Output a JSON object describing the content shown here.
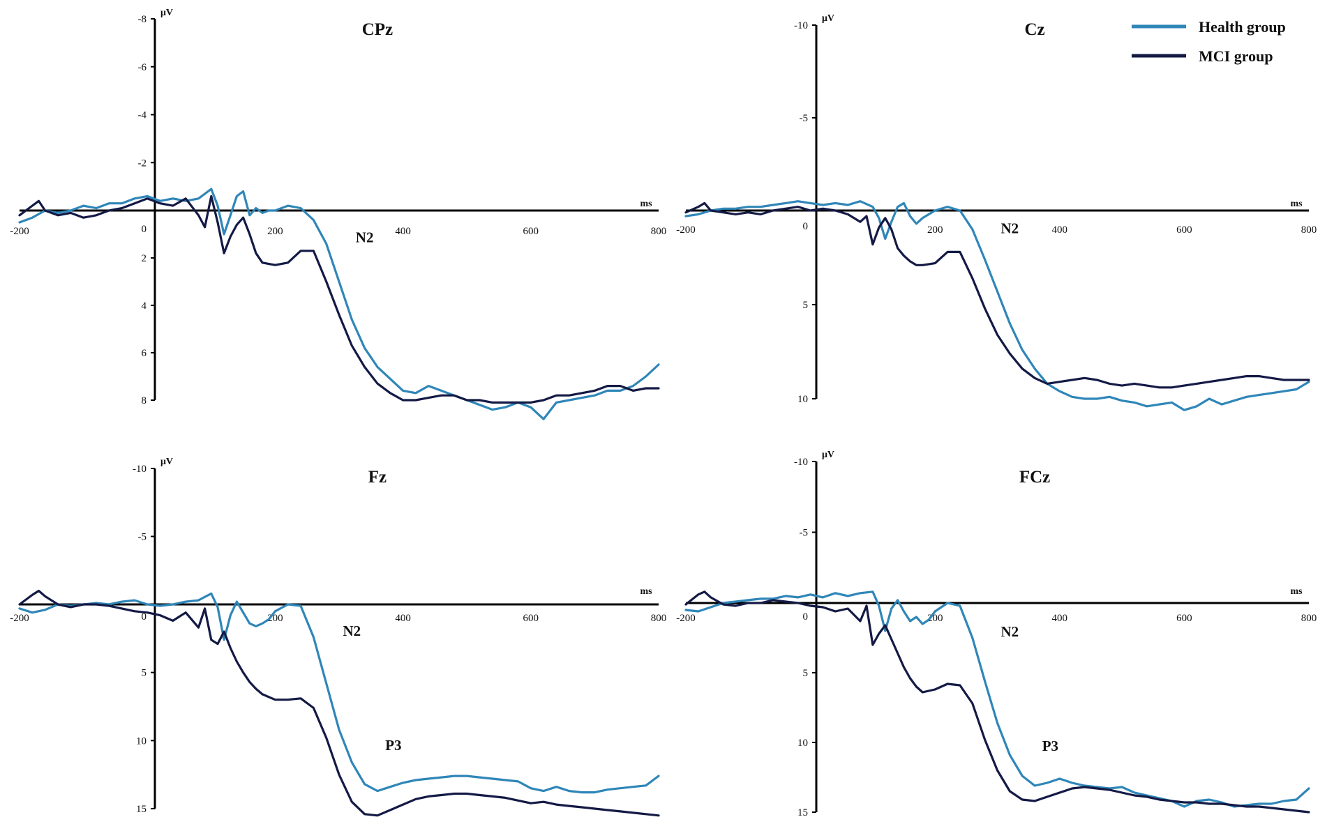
{
  "colors": {
    "health": "#2f86b8",
    "mci": "#141a45",
    "axis": "#000000"
  },
  "legend": {
    "position": "top-right",
    "items": [
      {
        "label": "Health group",
        "color": "#2f86b8"
      },
      {
        "label": "MCI group",
        "color": "#141a45"
      }
    ]
  },
  "chart_data": [
    {
      "type": "line",
      "title": "CPz",
      "xunit": "ms",
      "yunit": "μV",
      "xlim": [
        -200,
        800
      ],
      "ylim": [
        -8,
        8
      ],
      "y_inverted": true,
      "xticks": [
        -200,
        200,
        400,
        600,
        800
      ],
      "yticks": [
        -8,
        -6,
        -4,
        -2,
        0,
        2,
        4,
        6,
        8
      ],
      "annotations": [
        {
          "text": "N2",
          "x": 340,
          "y": 1.1
        }
      ],
      "series": [
        {
          "name": "Health group",
          "color": "#2f86b8",
          "x": [
            -200,
            -180,
            -160,
            -140,
            -120,
            -100,
            -80,
            -60,
            -40,
            -20,
            0,
            20,
            40,
            60,
            80,
            100,
            110,
            120,
            130,
            140,
            150,
            160,
            170,
            180,
            190,
            200,
            220,
            240,
            260,
            280,
            300,
            320,
            340,
            360,
            380,
            400,
            420,
            440,
            460,
            480,
            500,
            520,
            540,
            560,
            580,
            600,
            620,
            640,
            660,
            680,
            700,
            720,
            740,
            760,
            780,
            800
          ],
          "y": [
            0.5,
            0.3,
            0.0,
            0.1,
            0.0,
            -0.2,
            -0.1,
            -0.3,
            -0.3,
            -0.5,
            -0.6,
            -0.4,
            -0.5,
            -0.4,
            -0.5,
            -0.9,
            -0.2,
            1.0,
            0.2,
            -0.6,
            -0.8,
            0.2,
            -0.1,
            0.1,
            0.0,
            0.0,
            -0.2,
            -0.1,
            0.4,
            1.4,
            3.0,
            4.6,
            5.8,
            6.6,
            7.1,
            7.6,
            7.7,
            7.4,
            7.6,
            7.8,
            8.0,
            8.2,
            8.4,
            8.3,
            8.1,
            8.3,
            8.8,
            8.1,
            8.0,
            7.9,
            7.8,
            7.6,
            7.6,
            7.4,
            7.0,
            6.5
          ]
        },
        {
          "name": "MCI group",
          "color": "#141a45",
          "x": [
            -200,
            -180,
            -170,
            -160,
            -140,
            -120,
            -100,
            -80,
            -60,
            -40,
            -20,
            0,
            20,
            40,
            60,
            80,
            90,
            100,
            110,
            120,
            130,
            140,
            150,
            160,
            170,
            180,
            200,
            220,
            240,
            260,
            280,
            300,
            320,
            340,
            360,
            380,
            400,
            420,
            440,
            460,
            480,
            500,
            520,
            540,
            560,
            580,
            600,
            620,
            640,
            660,
            680,
            700,
            720,
            740,
            760,
            780,
            800
          ],
          "y": [
            0.2,
            -0.2,
            -0.4,
            0.0,
            0.2,
            0.1,
            0.3,
            0.2,
            0.0,
            -0.1,
            -0.3,
            -0.5,
            -0.3,
            -0.2,
            -0.5,
            0.2,
            0.7,
            -0.6,
            0.5,
            1.8,
            1.1,
            0.6,
            0.3,
            1.0,
            1.8,
            2.2,
            2.3,
            2.2,
            1.7,
            1.7,
            3.0,
            4.4,
            5.7,
            6.6,
            7.3,
            7.7,
            8.0,
            8.0,
            7.9,
            7.8,
            7.8,
            8.0,
            8.0,
            8.1,
            8.1,
            8.1,
            8.1,
            8.0,
            7.8,
            7.8,
            7.7,
            7.6,
            7.4,
            7.4,
            7.6,
            7.5,
            7.5
          ]
        }
      ]
    },
    {
      "type": "line",
      "title": "Cz",
      "xunit": "ms",
      "yunit": "μV",
      "xlim": [
        -200,
        800
      ],
      "ylim": [
        -10,
        10
      ],
      "y_inverted": true,
      "xticks": [
        -200,
        200,
        400,
        600,
        800
      ],
      "yticks": [
        -10,
        -5,
        0,
        5,
        10
      ],
      "annotations": [
        {
          "text": "N2",
          "x": 320,
          "y": 0.9
        }
      ],
      "series": [
        {
          "name": "Health group",
          "color": "#2f86b8",
          "x": [
            -200,
            -180,
            -160,
            -140,
            -120,
            -100,
            -80,
            -60,
            -40,
            -20,
            0,
            20,
            40,
            60,
            80,
            100,
            110,
            120,
            130,
            140,
            150,
            160,
            170,
            180,
            190,
            200,
            220,
            240,
            260,
            280,
            300,
            320,
            340,
            360,
            380,
            400,
            420,
            440,
            460,
            480,
            500,
            520,
            540,
            560,
            580,
            600,
            620,
            640,
            660,
            680,
            700,
            720,
            740,
            760,
            780,
            800
          ],
          "y": [
            0.3,
            0.2,
            0.0,
            -0.1,
            -0.1,
            -0.2,
            -0.2,
            -0.3,
            -0.4,
            -0.5,
            -0.4,
            -0.3,
            -0.4,
            -0.3,
            -0.5,
            -0.2,
            0.4,
            1.5,
            0.6,
            -0.2,
            -0.4,
            0.3,
            0.7,
            0.4,
            0.2,
            0.0,
            -0.2,
            0.0,
            1.0,
            2.6,
            4.3,
            6.0,
            7.4,
            8.4,
            9.2,
            9.6,
            9.9,
            10.0,
            10.0,
            9.9,
            10.1,
            10.2,
            10.4,
            10.3,
            10.2,
            10.6,
            10.4,
            10.0,
            10.3,
            10.1,
            9.9,
            9.8,
            9.7,
            9.6,
            9.5,
            9.1
          ]
        },
        {
          "name": "MCI group",
          "color": "#141a45",
          "x": [
            -200,
            -180,
            -170,
            -160,
            -140,
            -120,
            -100,
            -80,
            -60,
            -40,
            -20,
            0,
            20,
            40,
            60,
            80,
            90,
            100,
            110,
            120,
            130,
            140,
            150,
            160,
            170,
            180,
            200,
            220,
            240,
            260,
            280,
            300,
            320,
            340,
            360,
            380,
            400,
            420,
            440,
            460,
            480,
            500,
            520,
            540,
            560,
            580,
            600,
            620,
            640,
            660,
            680,
            700,
            720,
            740,
            760,
            780,
            800
          ],
          "y": [
            0.1,
            -0.2,
            -0.4,
            0.0,
            0.1,
            0.2,
            0.1,
            0.2,
            0.0,
            -0.1,
            -0.2,
            0.0,
            -0.1,
            0.0,
            0.2,
            0.6,
            0.3,
            1.8,
            0.9,
            0.4,
            1.0,
            2.0,
            2.4,
            2.7,
            2.9,
            2.9,
            2.8,
            2.2,
            2.2,
            3.6,
            5.2,
            6.6,
            7.6,
            8.4,
            8.9,
            9.2,
            9.1,
            9.0,
            8.9,
            9.0,
            9.2,
            9.3,
            9.2,
            9.3,
            9.4,
            9.4,
            9.3,
            9.2,
            9.1,
            9.0,
            8.9,
            8.8,
            8.8,
            8.9,
            9.0,
            9.0,
            9.0
          ]
        }
      ]
    },
    {
      "type": "line",
      "title": "Fz",
      "xunit": "ms",
      "yunit": "μV",
      "xlim": [
        -200,
        800
      ],
      "ylim": [
        -10,
        15
      ],
      "y_inverted": true,
      "xticks": [
        -200,
        200,
        400,
        600,
        800
      ],
      "yticks": [
        -10,
        -5,
        0,
        5,
        10,
        15
      ],
      "annotations": [
        {
          "text": "N2",
          "x": 320,
          "y": 1.9
        },
        {
          "text": "P3",
          "x": 385,
          "y": 10.3
        }
      ],
      "series": [
        {
          "name": "Health group",
          "color": "#2f86b8",
          "x": [
            -200,
            -180,
            -160,
            -140,
            -120,
            -100,
            -80,
            -60,
            -40,
            -20,
            0,
            20,
            40,
            60,
            80,
            100,
            110,
            120,
            130,
            140,
            150,
            160,
            170,
            180,
            190,
            200,
            220,
            240,
            260,
            280,
            300,
            320,
            340,
            360,
            380,
            400,
            420,
            440,
            460,
            480,
            500,
            520,
            540,
            560,
            580,
            600,
            620,
            640,
            660,
            680,
            700,
            720,
            740,
            760,
            780,
            800
          ],
          "y": [
            0.3,
            0.6,
            0.4,
            0.0,
            0.1,
            0.0,
            -0.1,
            0.0,
            -0.2,
            -0.3,
            0.0,
            0.1,
            0.0,
            -0.2,
            -0.3,
            -0.8,
            0.2,
            2.6,
            0.8,
            -0.2,
            0.6,
            1.4,
            1.6,
            1.4,
            1.1,
            0.5,
            0.0,
            0.1,
            2.4,
            5.8,
            9.2,
            11.6,
            13.2,
            13.7,
            13.4,
            13.1,
            12.9,
            12.8,
            12.7,
            12.6,
            12.6,
            12.7,
            12.8,
            12.9,
            13.0,
            13.5,
            13.7,
            13.4,
            13.7,
            13.8,
            13.8,
            13.6,
            13.5,
            13.4,
            13.3,
            12.6
          ]
        },
        {
          "name": "MCI group",
          "color": "#141a45",
          "x": [
            -200,
            -180,
            -170,
            -160,
            -140,
            -120,
            -100,
            -80,
            -60,
            -40,
            -20,
            0,
            20,
            40,
            60,
            80,
            90,
            100,
            110,
            120,
            130,
            140,
            150,
            160,
            170,
            180,
            200,
            220,
            240,
            260,
            280,
            300,
            320,
            340,
            360,
            380,
            400,
            420,
            440,
            460,
            480,
            500,
            520,
            540,
            560,
            580,
            600,
            620,
            640,
            660,
            680,
            700,
            720,
            740,
            760,
            780,
            800
          ],
          "y": [
            0.0,
            -0.7,
            -1.0,
            -0.6,
            0.0,
            0.2,
            0.0,
            0.0,
            0.1,
            0.3,
            0.5,
            0.6,
            0.8,
            1.2,
            0.6,
            1.7,
            0.3,
            2.6,
            2.9,
            2.0,
            3.2,
            4.2,
            5.0,
            5.7,
            6.2,
            6.6,
            7.0,
            7.0,
            6.9,
            7.6,
            9.8,
            12.5,
            14.5,
            15.4,
            15.5,
            15.1,
            14.7,
            14.3,
            14.1,
            14.0,
            13.9,
            13.9,
            14.0,
            14.1,
            14.2,
            14.4,
            14.6,
            14.5,
            14.7,
            14.8,
            14.9,
            15.0,
            15.1,
            15.2,
            15.3,
            15.4,
            15.5
          ]
        }
      ]
    },
    {
      "type": "line",
      "title": "FCz",
      "xunit": "ms",
      "yunit": "μV",
      "xlim": [
        -200,
        800
      ],
      "ylim": [
        -10,
        15
      ],
      "y_inverted": true,
      "xticks": [
        -200,
        200,
        400,
        600,
        800
      ],
      "yticks": [
        -10,
        -5,
        0,
        5,
        10,
        15
      ],
      "annotations": [
        {
          "text": "N2",
          "x": 320,
          "y": 2.0
        },
        {
          "text": "P3",
          "x": 385,
          "y": 10.2
        }
      ],
      "series": [
        {
          "name": "Health group",
          "color": "#2f86b8",
          "x": [
            -200,
            -180,
            -160,
            -140,
            -120,
            -100,
            -80,
            -60,
            -40,
            -20,
            0,
            20,
            40,
            60,
            80,
            100,
            110,
            120,
            130,
            140,
            150,
            160,
            170,
            180,
            190,
            200,
            220,
            240,
            260,
            280,
            300,
            320,
            340,
            360,
            380,
            400,
            420,
            440,
            460,
            480,
            500,
            520,
            540,
            560,
            580,
            600,
            620,
            640,
            660,
            680,
            700,
            720,
            740,
            760,
            780,
            800
          ],
          "y": [
            0.5,
            0.6,
            0.3,
            0.0,
            -0.1,
            -0.2,
            -0.3,
            -0.3,
            -0.5,
            -0.4,
            -0.6,
            -0.4,
            -0.7,
            -0.5,
            -0.7,
            -0.8,
            0.2,
            2.0,
            0.4,
            -0.2,
            0.6,
            1.3,
            1.0,
            1.5,
            1.2,
            0.6,
            0.0,
            0.2,
            2.5,
            5.6,
            8.6,
            10.9,
            12.4,
            13.1,
            12.9,
            12.6,
            12.9,
            13.1,
            13.2,
            13.3,
            13.2,
            13.6,
            13.8,
            14.0,
            14.2,
            14.6,
            14.2,
            14.1,
            14.3,
            14.6,
            14.5,
            14.4,
            14.4,
            14.2,
            14.1,
            13.3
          ]
        },
        {
          "name": "MCI group",
          "color": "#141a45",
          "x": [
            -200,
            -180,
            -170,
            -160,
            -140,
            -120,
            -100,
            -80,
            -60,
            -40,
            -20,
            0,
            20,
            40,
            60,
            80,
            90,
            100,
            110,
            120,
            130,
            140,
            150,
            160,
            170,
            180,
            200,
            220,
            240,
            260,
            280,
            300,
            320,
            340,
            360,
            380,
            400,
            420,
            440,
            460,
            480,
            500,
            520,
            540,
            560,
            580,
            600,
            620,
            640,
            660,
            680,
            700,
            720,
            740,
            760,
            780,
            800
          ],
          "y": [
            0.1,
            -0.6,
            -0.8,
            -0.4,
            0.1,
            0.2,
            0.0,
            0.0,
            -0.2,
            -0.1,
            0.0,
            0.2,
            0.3,
            0.6,
            0.4,
            1.3,
            0.2,
            3.0,
            2.2,
            1.6,
            2.6,
            3.6,
            4.6,
            5.4,
            6.0,
            6.4,
            6.2,
            5.8,
            5.9,
            7.2,
            9.8,
            12.0,
            13.5,
            14.1,
            14.2,
            13.9,
            13.6,
            13.3,
            13.2,
            13.3,
            13.4,
            13.6,
            13.8,
            13.9,
            14.1,
            14.2,
            14.3,
            14.3,
            14.4,
            14.4,
            14.5,
            14.6,
            14.6,
            14.7,
            14.8,
            14.9,
            15.0
          ]
        }
      ]
    }
  ]
}
